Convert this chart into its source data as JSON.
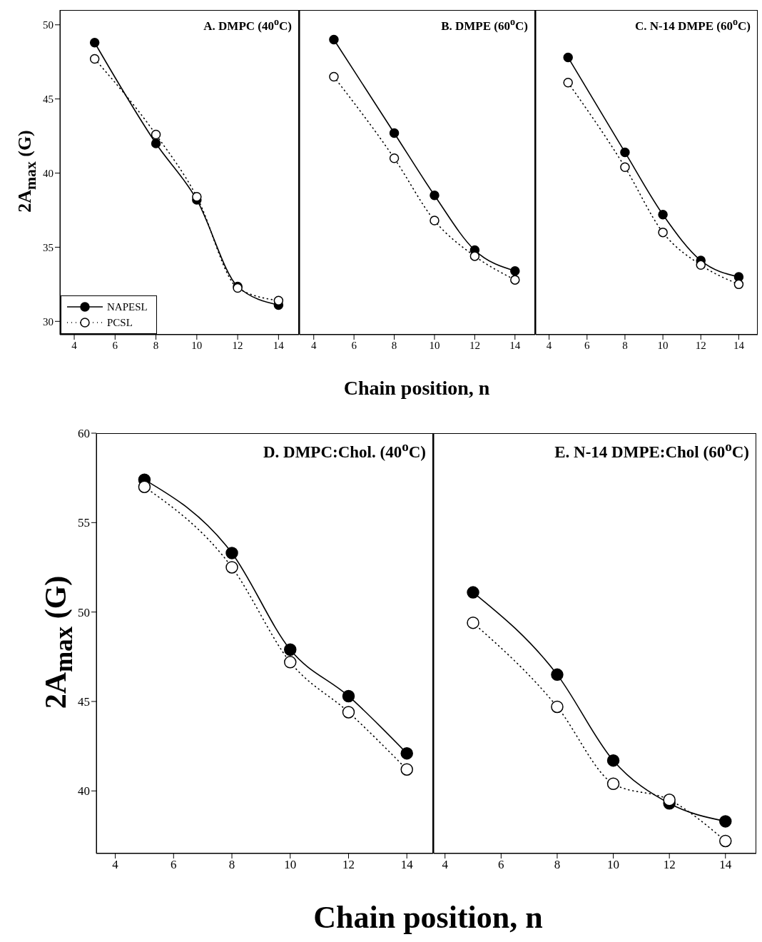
{
  "chart_data": [
    {
      "type": "line",
      "title": "A. DMPC (40$^{o}$C)",
      "xlabel": "Chain position, n",
      "ylabel": "2A$_{max}$ (G)",
      "x": [
        5,
        8,
        10,
        12,
        14
      ],
      "xlim": [
        3.3,
        15
      ],
      "xticks": [
        4,
        6,
        8,
        10,
        12,
        14
      ],
      "ylim": [
        29.1,
        51
      ],
      "yticks": [
        30,
        35,
        40,
        45,
        50
      ],
      "legend": "bottom left",
      "marker": "circle",
      "grid": false,
      "series": [
        {
          "name": "NAPESL",
          "color": "#000000",
          "line_style": "solid",
          "values": [
            48.8,
            42.0,
            38.2,
            32.35,
            31.1
          ]
        },
        {
          "name": "PCSL",
          "color": "#000000",
          "line_style": "dotted",
          "values": [
            47.7,
            42.6,
            38.4,
            32.25,
            31.4
          ]
        }
      ]
    },
    {
      "type": "line",
      "title": "B. DMPE (60$^{o}$C)",
      "x": [
        5,
        8,
        10,
        12,
        14
      ],
      "xlim": [
        3.3,
        15
      ],
      "xticks": [
        4,
        6,
        8,
        10,
        12,
        14
      ],
      "ylim": [
        29.1,
        51
      ],
      "yticks": [
        30,
        35,
        40,
        45,
        50
      ],
      "tick_labels": "x",
      "marker": "circle",
      "grid": false,
      "series": [
        {
          "color": "#000000",
          "line_style": "solid",
          "values": [
            49.0,
            42.7,
            38.5,
            34.8,
            33.4
          ]
        },
        {
          "color": "#000000",
          "line_style": "dotted",
          "values": [
            46.5,
            41.0,
            36.8,
            34.4,
            32.8
          ]
        }
      ]
    },
    {
      "type": "line",
      "title": "C. N-14 DMPE (60$^{o}$C)",
      "x": [
        5,
        8,
        10,
        12,
        14
      ],
      "xlim": [
        3.3,
        15
      ],
      "xticks": [
        4,
        6,
        8,
        10,
        12,
        14
      ],
      "ylim": [
        29.1,
        51
      ],
      "yticks": [
        30,
        35,
        40,
        45,
        50
      ],
      "tick_labels": "x",
      "marker": "circle",
      "grid": false,
      "series": [
        {
          "color": "#000000",
          "line_style": "solid",
          "values": [
            47.8,
            41.4,
            37.2,
            34.1,
            33.0
          ]
        },
        {
          "color": "#000000",
          "line_style": "dotted",
          "values": [
            46.1,
            40.4,
            36.0,
            33.8,
            32.5
          ]
        }
      ]
    },
    {
      "type": "line",
      "title": "D. DMPC:Chol. (40$^{o}$C)",
      "xlabel": "Chain position, n",
      "ylabel": "2A$_{max}$ (G)",
      "x": [
        5,
        8,
        10,
        12,
        14
      ],
      "xlim": [
        3.35,
        14.9
      ],
      "xticks": [
        4,
        6,
        8,
        10,
        12,
        14
      ],
      "ylim": [
        36.5,
        60
      ],
      "yticks": [
        40,
        45,
        50,
        55,
        60
      ],
      "marker": "circle",
      "grid": false,
      "series": [
        {
          "color": "#000000",
          "line_style": "solid",
          "values": [
            57.4,
            53.3,
            47.9,
            45.3,
            42.1
          ]
        },
        {
          "color": "#000000",
          "line_style": "dotted",
          "values": [
            57.0,
            52.5,
            47.2,
            44.4,
            41.2
          ]
        }
      ]
    },
    {
      "type": "line",
      "title": "E. N-14 DMPE:Chol (60$^{o}$C)",
      "x": [
        5,
        8,
        10,
        12,
        14
      ],
      "xlim": [
        3.6,
        15.1
      ],
      "xticks": [
        4,
        6,
        8,
        10,
        12,
        14
      ],
      "ylim": [
        36.5,
        60
      ],
      "yticks": [
        40,
        45,
        50,
        55,
        60
      ],
      "tick_labels": "x",
      "marker": "circle",
      "grid": false,
      "series": [
        {
          "color": "#000000",
          "line_style": "solid",
          "values": [
            51.1,
            46.5,
            41.7,
            39.3,
            38.3
          ]
        },
        {
          "color": "#000000",
          "line_style": "dotted",
          "values": [
            49.4,
            44.7,
            40.4,
            39.5,
            37.2
          ]
        }
      ]
    }
  ]
}
